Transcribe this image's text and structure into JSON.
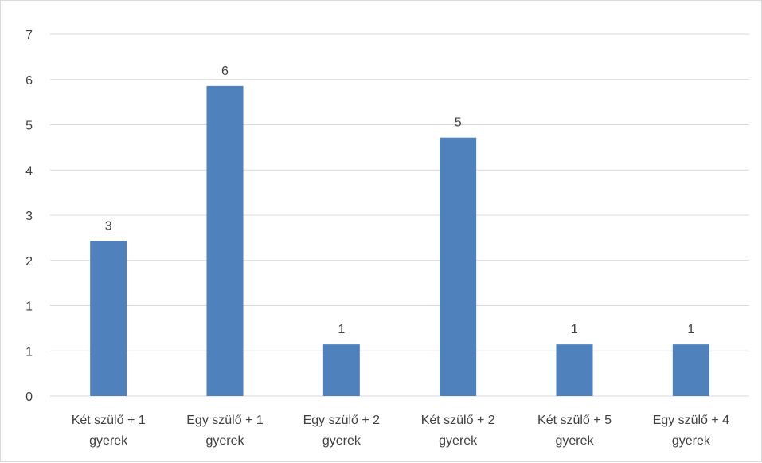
{
  "chart_data": {
    "type": "bar",
    "categories": [
      [
        "Két szülő + 1",
        "gyerek"
      ],
      [
        "Egy szülő + 1",
        "gyerek"
      ],
      [
        "Egy szülő + 2",
        "gyerek"
      ],
      [
        "Két szülő + 2",
        "gyerek"
      ],
      [
        "Két szülő + 5",
        "gyerek"
      ],
      [
        "Egy szülő + 4",
        "gyerek"
      ]
    ],
    "values": [
      3,
      6,
      1,
      5,
      1,
      1
    ],
    "data_labels": [
      "3",
      "6",
      "1",
      "5",
      "1",
      "1"
    ],
    "y_ticks": [
      "0",
      "1",
      "1",
      "2",
      "3",
      "4",
      "5",
      "6",
      "7"
    ],
    "ylim": [
      0,
      7
    ],
    "grid": true,
    "legend": "none",
    "bar_color": "#4f81bd"
  }
}
